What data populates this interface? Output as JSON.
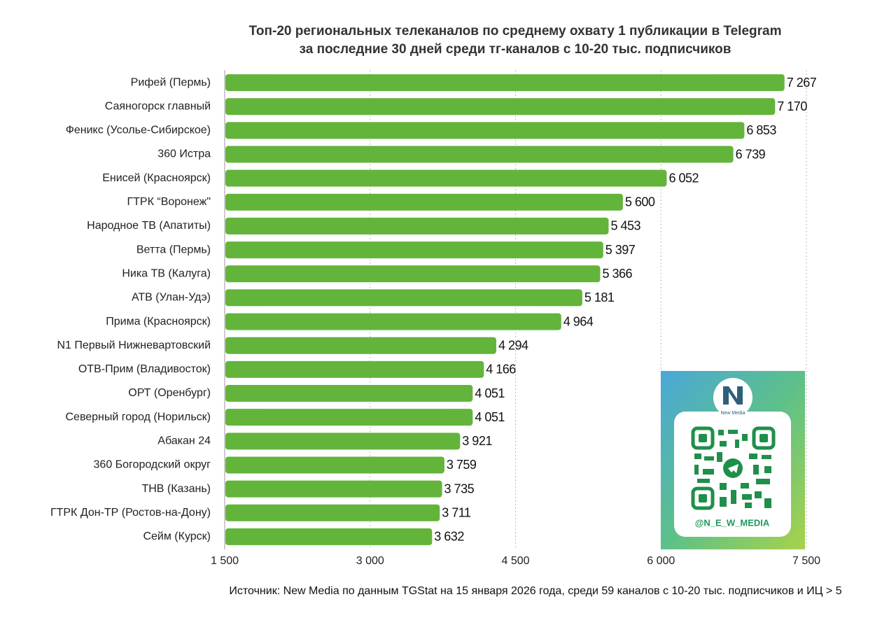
{
  "chart_data": {
    "type": "bar",
    "orientation": "horizontal",
    "title": "Топ-20 региональных телеканалов по среднему охвату 1 публикации в Telegram",
    "subtitle": "за последние 30 дней среди тг-каналов с 10-20 тыс. подписчиков",
    "categories": [
      "Рифей (Пермь)",
      "Саяногорск главный",
      "Феникс (Усолье-Сибирское)",
      "360 Истра",
      "Енисей (Красноярск)",
      "ГТРК “Воронеж\"",
      "Народное ТВ (Апатиты)",
      "Ветта (Пермь)",
      "Ника ТВ (Калуга)",
      "АТВ (Улан-Удэ)",
      "Прима (Красноярск)",
      "N1 Первый Нижневартовский",
      "ОТВ-Прим (Владивосток)",
      "ОРТ (Оренбург)",
      "Северный город (Норильск)",
      "Абакан 24",
      "360 Богородский округ",
      "ТНВ (Казань)",
      "ГТРК Дон-ТР (Ростов-на-Дону)",
      "Сейм (Курск)"
    ],
    "values": [
      7267,
      7170,
      6853,
      6739,
      6052,
      5600,
      5453,
      5397,
      5366,
      5181,
      4964,
      4294,
      4166,
      4051,
      4051,
      3921,
      3759,
      3735,
      3711,
      3632
    ],
    "value_labels": [
      "7 267",
      "7 170",
      "6 853",
      "6 739",
      "6 052",
      "5 600",
      "5 453",
      "5 397",
      "5 366",
      "5 181",
      "4 964",
      "4 294",
      "4 166",
      "4 051",
      "4 051",
      "3 921",
      "3 759",
      "3 735",
      "3 711",
      "3 632"
    ],
    "color": "#63b43b",
    "xlim": [
      1500,
      7500
    ],
    "xticks": [
      {
        "value": 1500,
        "label": "1 500"
      },
      {
        "value": 3000,
        "label": "3 000"
      },
      {
        "value": 4500,
        "label": "4 500"
      },
      {
        "value": 6000,
        "label": "6 000"
      },
      {
        "value": 7500,
        "label": "7 500"
      }
    ],
    "grid": true,
    "source": "Источник: New Media по данным TGStat на 15 января 2026 года, среди 59 каналов с 10-20 тыс. подписчиков и ИЦ > 5",
    "logo_text": "New Media",
    "handle": "@N_E_W_MEDIA"
  }
}
